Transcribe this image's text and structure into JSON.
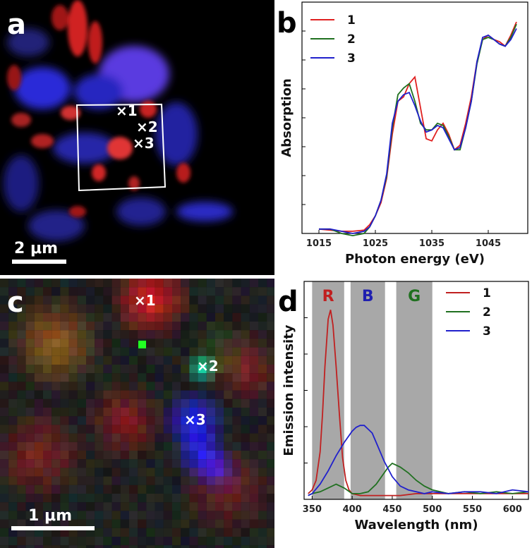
{
  "panel_a": {
    "label": "a",
    "markers": [
      "×1",
      "×2",
      "×3"
    ],
    "scale_bar": "2 μm"
  },
  "panel_c": {
    "label": "c",
    "markers": [
      "×1",
      "×2",
      "×3"
    ],
    "scale_bar": "1 μm"
  },
  "chart_data": [
    {
      "panel": "b",
      "type": "line",
      "title": "",
      "xlabel": "Photon energy (eV)",
      "ylabel": "Absorption",
      "xlim": [
        1012,
        1052
      ],
      "ylim": [
        0,
        1.05
      ],
      "xticks": [
        1015,
        1025,
        1035,
        1045
      ],
      "legend_position": "top-left",
      "series": [
        {
          "name": "1",
          "color": "#e02020",
          "x": [
            1015,
            1017,
            1019,
            1021,
            1023,
            1024,
            1025,
            1026,
            1027,
            1028,
            1029,
            1030,
            1031,
            1032,
            1033,
            1034,
            1035,
            1036,
            1037,
            1038,
            1039,
            1040,
            1041,
            1042,
            1043,
            1044,
            1045,
            1046,
            1047,
            1048,
            1049,
            1050
          ],
          "y": [
            0.02,
            0.015,
            0.01,
            0.01,
            0.015,
            0.04,
            0.08,
            0.14,
            0.25,
            0.45,
            0.6,
            0.62,
            0.68,
            0.71,
            0.57,
            0.43,
            0.42,
            0.47,
            0.5,
            0.45,
            0.38,
            0.4,
            0.5,
            0.62,
            0.78,
            0.88,
            0.9,
            0.88,
            0.87,
            0.85,
            0.9,
            0.96
          ]
        },
        {
          "name": "2",
          "color": "#207020",
          "x": [
            1015,
            1017,
            1019,
            1021,
            1023,
            1024,
            1025,
            1026,
            1027,
            1028,
            1029,
            1030,
            1031,
            1032,
            1033,
            1034,
            1035,
            1036,
            1037,
            1038,
            1039,
            1040,
            1041,
            1042,
            1043,
            1044,
            1045,
            1046,
            1047,
            1048,
            1049,
            1050
          ],
          "y": [
            0.02,
            0.02,
            0.0,
            -0.01,
            0.0,
            0.03,
            0.08,
            0.15,
            0.26,
            0.48,
            0.63,
            0.66,
            0.68,
            0.6,
            0.5,
            0.47,
            0.47,
            0.5,
            0.49,
            0.44,
            0.38,
            0.38,
            0.48,
            0.6,
            0.77,
            0.88,
            0.89,
            0.88,
            0.86,
            0.85,
            0.89,
            0.95
          ]
        },
        {
          "name": "3",
          "color": "#2020cc",
          "x": [
            1015,
            1017,
            1019,
            1021,
            1023,
            1024,
            1025,
            1026,
            1027,
            1028,
            1029,
            1030,
            1031,
            1032,
            1033,
            1034,
            1035,
            1036,
            1037,
            1038,
            1039,
            1040,
            1041,
            1042,
            1043,
            1044,
            1045,
            1046,
            1047,
            1048,
            1049,
            1050
          ],
          "y": [
            0.02,
            0.02,
            0.01,
            0.0,
            0.01,
            0.03,
            0.08,
            0.15,
            0.27,
            0.5,
            0.6,
            0.63,
            0.64,
            0.58,
            0.51,
            0.46,
            0.47,
            0.49,
            0.48,
            0.43,
            0.38,
            0.39,
            0.48,
            0.6,
            0.78,
            0.89,
            0.9,
            0.88,
            0.86,
            0.85,
            0.88,
            0.93
          ]
        }
      ]
    },
    {
      "panel": "d",
      "type": "line",
      "title": "",
      "xlabel": "Wavelength (nm)",
      "ylabel": "Emission intensity",
      "xlim": [
        340,
        620
      ],
      "ylim": [
        0,
        1.15
      ],
      "xticks": [
        350,
        400,
        450,
        500,
        550,
        600
      ],
      "legend_position": "top-right",
      "bands": [
        {
          "label": "R",
          "color": "#c02020",
          "range": [
            350,
            390
          ]
        },
        {
          "label": "B",
          "color": "#2020b0",
          "range": [
            398,
            441
          ]
        },
        {
          "label": "G",
          "color": "#207020",
          "range": [
            455,
            500
          ]
        }
      ],
      "series": [
        {
          "name": "1",
          "color": "#c02020",
          "x": [
            345,
            350,
            355,
            360,
            363,
            366,
            370,
            373,
            376,
            380,
            384,
            388,
            392,
            396,
            400,
            410,
            420,
            440,
            460,
            480,
            500,
            520,
            540,
            560,
            580,
            600,
            620
          ],
          "y": [
            0.03,
            0.05,
            0.1,
            0.25,
            0.45,
            0.7,
            0.95,
            1.0,
            0.92,
            0.7,
            0.45,
            0.22,
            0.1,
            0.05,
            0.03,
            0.02,
            0.02,
            0.02,
            0.02,
            0.03,
            0.03,
            0.03,
            0.03,
            0.03,
            0.03,
            0.03,
            0.03
          ]
        },
        {
          "name": "2",
          "color": "#207020",
          "x": [
            345,
            350,
            360,
            370,
            380,
            390,
            400,
            410,
            420,
            430,
            440,
            445,
            450,
            455,
            460,
            470,
            480,
            490,
            500,
            510,
            520,
            540,
            560,
            580,
            600,
            620
          ],
          "y": [
            0.02,
            0.03,
            0.04,
            0.06,
            0.08,
            0.06,
            0.03,
            0.03,
            0.04,
            0.08,
            0.14,
            0.17,
            0.19,
            0.18,
            0.17,
            0.14,
            0.1,
            0.07,
            0.05,
            0.04,
            0.03,
            0.04,
            0.03,
            0.04,
            0.03,
            0.04
          ]
        },
        {
          "name": "3",
          "color": "#2020cc",
          "x": [
            345,
            350,
            360,
            370,
            380,
            390,
            400,
            405,
            410,
            415,
            420,
            425,
            430,
            435,
            440,
            445,
            450,
            460,
            470,
            480,
            490,
            500,
            520,
            540,
            560,
            580,
            600,
            620
          ],
          "y": [
            0.02,
            0.03,
            0.08,
            0.15,
            0.23,
            0.3,
            0.36,
            0.38,
            0.39,
            0.39,
            0.37,
            0.35,
            0.3,
            0.25,
            0.2,
            0.16,
            0.12,
            0.07,
            0.05,
            0.04,
            0.03,
            0.04,
            0.03,
            0.04,
            0.04,
            0.03,
            0.05,
            0.04
          ]
        }
      ]
    }
  ]
}
